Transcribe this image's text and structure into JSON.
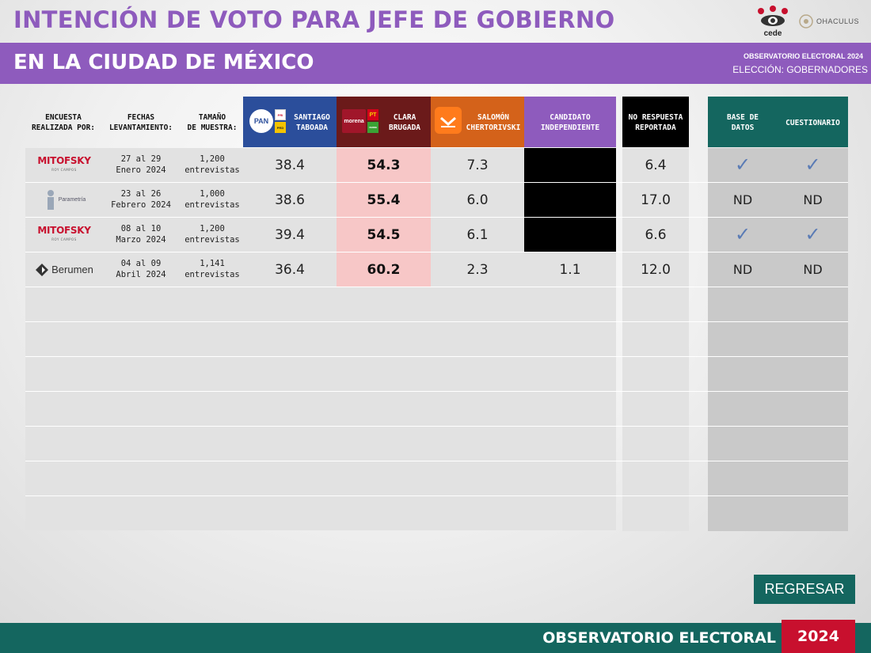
{
  "header": {
    "title_line1": "INTENCIÓN DE VOTO PARA JEFE DE GOBIERNO",
    "title_line2": "EN LA CIUDAD DE MÉXICO",
    "observatorio_small": "OBSERVATORIO ELECTORAL 2024",
    "eleccion": "ELECCIÓN: GOBERNADORES",
    "logo_cede": "cede",
    "logo_ochaus": "OHACULUS"
  },
  "columns": {
    "encuesta": [
      "ENCUESTA",
      "REALIZADA POR:"
    ],
    "fechas": [
      "FECHAS",
      "LEVANTAMIENTO:"
    ],
    "tamano": [
      "TAMAÑO",
      "DE MUESTRA:"
    ],
    "santiago": [
      "SANTIAGO",
      "TABOADA"
    ],
    "clara": [
      "CLARA",
      "BRUGADA"
    ],
    "salomon": [
      "SALOMÓN",
      "CHERTORIVSKI"
    ],
    "independiente": [
      "CANDIDATO",
      "INDEPENDIENTE"
    ],
    "no_respuesta": [
      "NO RESPUESTA",
      "REPORTADA"
    ],
    "base_datos": [
      "BASE DE",
      "DATOS"
    ],
    "cuestionario": "CUESTIONARIO"
  },
  "party_logos": {
    "pan": "PAN",
    "pri": "PRI",
    "prd": "PRD",
    "morena": "morena",
    "pt": "PT",
    "verde": "VERDE"
  },
  "rows": [
    {
      "pollster": "MITOFSKY",
      "pollster_sub": "ROY CAMPOS",
      "date1": "27 al 29",
      "date2": "Enero 2024",
      "sample1": "1,200",
      "sample2": "entrevistas",
      "santiago": "38.4",
      "clara": "54.3",
      "salomon": "7.3",
      "independiente": "",
      "no_respuesta": "6.4",
      "base_datos": "✓",
      "cuestionario": "✓"
    },
    {
      "pollster": "Parametría",
      "pollster_sub": "",
      "date1": "23 al 26",
      "date2": "Febrero 2024",
      "sample1": "1,000",
      "sample2": "entrevistas",
      "santiago": "38.6",
      "clara": "55.4",
      "salomon": "6.0",
      "independiente": "",
      "no_respuesta": "17.0",
      "base_datos": "ND",
      "cuestionario": "ND"
    },
    {
      "pollster": "MITOFSKY",
      "pollster_sub": "ROY CAMPOS",
      "date1": "08 al 10",
      "date2": "Marzo 2024",
      "sample1": "1,200",
      "sample2": "entrevistas",
      "santiago": "39.4",
      "clara": "54.5",
      "salomon": "6.1",
      "independiente": "",
      "no_respuesta": "6.6",
      "base_datos": "✓",
      "cuestionario": "✓"
    },
    {
      "pollster": "Berumen",
      "pollster_sub": "",
      "date1": "04 al 09",
      "date2": "Abril 2024",
      "sample1": "1,141",
      "sample2": "entrevistas",
      "santiago": "36.4",
      "clara": "60.2",
      "salomon": "2.3",
      "independiente": "1.1",
      "no_respuesta": "12.0",
      "base_datos": "ND",
      "cuestionario": "ND"
    }
  ],
  "colors": {
    "purple": "#8e5bbd",
    "teal": "#14665f",
    "red": "#c8102e",
    "pan_blue": "#2b4e9b",
    "morena_maroon": "#6b1a1a",
    "mc_orange": "#d4621a",
    "clara_highlight": "#f7c7c7"
  },
  "buttons": {
    "regresar": "REGRESAR"
  },
  "footer": {
    "label": "OBSERVATORIO ELECTORAL",
    "year": "2024"
  }
}
